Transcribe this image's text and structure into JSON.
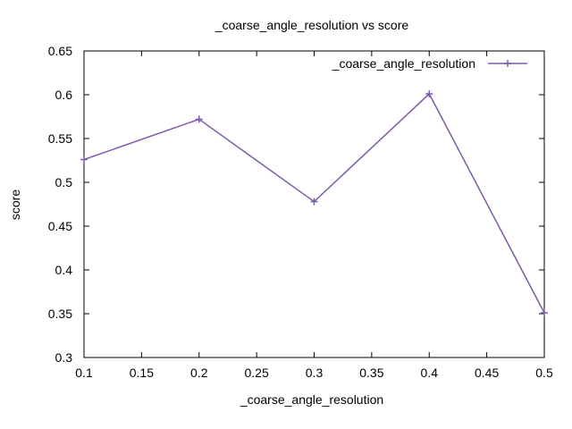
{
  "chart_data": {
    "type": "line",
    "title": "_coarse_angle_resolution vs score",
    "xlabel": "_coarse_angle_resolution",
    "ylabel": "score",
    "xlim": [
      0.1,
      0.5
    ],
    "ylim": [
      0.3,
      0.65
    ],
    "xticks": [
      "0.1",
      "0.15",
      "0.2",
      "0.25",
      "0.3",
      "0.35",
      "0.4",
      "0.45",
      "0.5"
    ],
    "yticks": [
      "0.3",
      "0.35",
      "0.4",
      "0.45",
      "0.5",
      "0.55",
      "0.6",
      "0.65"
    ],
    "grid": false,
    "legend_position": "top-right",
    "series": [
      {
        "name": "_coarse_angle_resolution",
        "color": "#7e5aa8",
        "marker": "plus",
        "x": [
          0.1,
          0.2,
          0.3,
          0.4,
          0.5
        ],
        "y": [
          0.526,
          0.572,
          0.478,
          0.601,
          0.351
        ]
      }
    ]
  }
}
